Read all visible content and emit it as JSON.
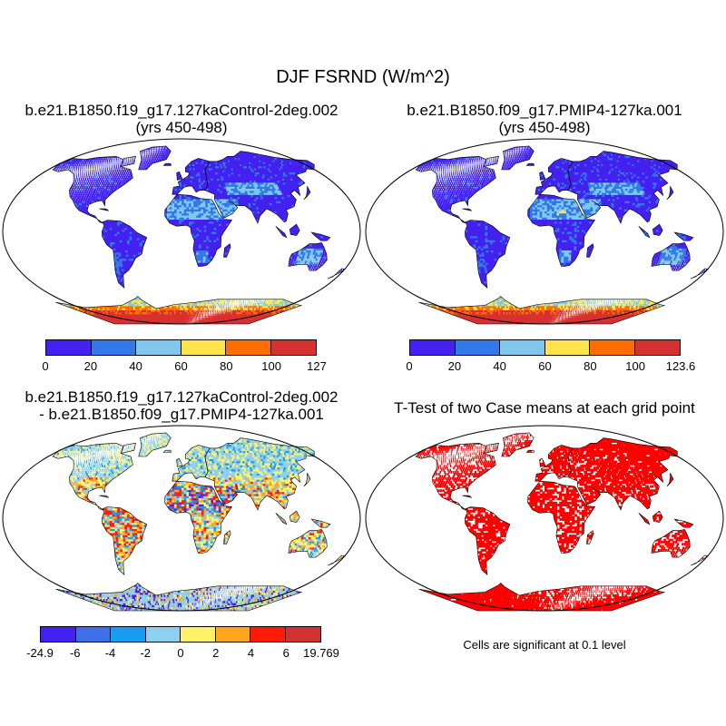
{
  "title": "DJF FSRND (W/m^2)",
  "panels": [
    {
      "title_line1": "b.e21.B1850.f19_g17.127kaControl-2deg.002",
      "title_line2": "(yrs 450-498)",
      "colorbar": {
        "colors": [
          "#4421f0",
          "#3079e6",
          "#7fc7ee",
          "#ffe54b",
          "#ff6c00",
          "#d63131"
        ],
        "labels": [
          "0",
          "20",
          "40",
          "60",
          "80",
          "100",
          "127"
        ]
      }
    },
    {
      "title_line1": "b.e21.B1850.f09_g17.PMIP4-127ka.001",
      "title_line2": "(yrs 450-498)",
      "colorbar": {
        "colors": [
          "#4421f0",
          "#3079e6",
          "#7fc7ee",
          "#ffe54b",
          "#ff6c00",
          "#d63131"
        ],
        "labels": [
          "0",
          "20",
          "40",
          "60",
          "80",
          "100",
          "123.6"
        ]
      }
    },
    {
      "title_line1": "b.e21.B1850.f19_g17.127kaControl-2deg.002",
      "title_line2": "- b.e21.B1850.f09_g17.PMIP4-127ka.001",
      "colorbar": {
        "colors": [
          "#4421f0",
          "#3e6ee8",
          "#1a9cf0",
          "#8fd0f0",
          "#fff06a",
          "#ffa51e",
          "#ff1a0a",
          "#d63131"
        ],
        "labels": [
          "-24.9",
          "-6",
          "-4",
          "-2",
          "0",
          "2",
          "4",
          "6",
          "19.769"
        ]
      }
    },
    {
      "title_line1": "T-Test of two Case means at each grid point",
      "note": "Cells are significant at 0.1 level"
    }
  ],
  "style": {
    "land_low": "#4421f0",
    "ocean": "#ffffff",
    "coast": "#000000",
    "significant": "#ff0000"
  }
}
